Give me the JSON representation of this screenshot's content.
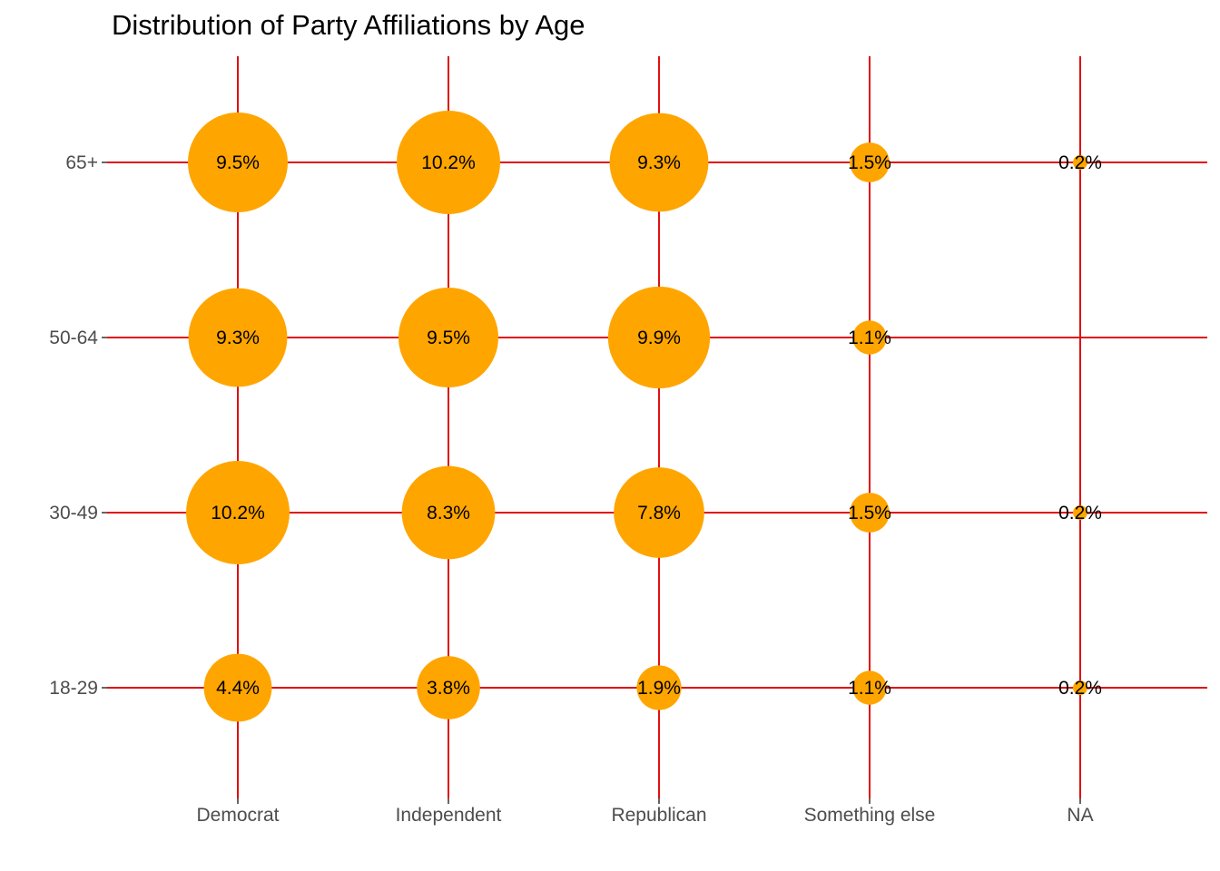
{
  "chart_data": {
    "type": "scatter",
    "title": "Distribution of Party Affiliations by Age",
    "xlabel": "",
    "ylabel": "",
    "x_categories": [
      "Democrat",
      "Independent",
      "Republican",
      "Something else",
      "NA"
    ],
    "y_categories": [
      "18-29",
      "30-49",
      "50-64",
      "65+"
    ],
    "grid": true,
    "legend": "none",
    "colors": {
      "bubble": "#FFA500",
      "grid": "#E01010",
      "tick_text": "#4D4D4D",
      "label_text": "#000000"
    },
    "points": [
      {
        "x": "Democrat",
        "y": "65+",
        "value": 9.5,
        "label": "9.5%"
      },
      {
        "x": "Independent",
        "y": "65+",
        "value": 10.2,
        "label": "10.2%"
      },
      {
        "x": "Republican",
        "y": "65+",
        "value": 9.3,
        "label": "9.3%"
      },
      {
        "x": "Something else",
        "y": "65+",
        "value": 1.5,
        "label": "1.5%"
      },
      {
        "x": "NA",
        "y": "65+",
        "value": 0.2,
        "label": "0.2%"
      },
      {
        "x": "Democrat",
        "y": "50-64",
        "value": 9.3,
        "label": "9.3%"
      },
      {
        "x": "Independent",
        "y": "50-64",
        "value": 9.5,
        "label": "9.5%"
      },
      {
        "x": "Republican",
        "y": "50-64",
        "value": 9.9,
        "label": "9.9%"
      },
      {
        "x": "Something else",
        "y": "50-64",
        "value": 1.1,
        "label": "1.1%"
      },
      {
        "x": "Democrat",
        "y": "30-49",
        "value": 10.2,
        "label": "10.2%"
      },
      {
        "x": "Independent",
        "y": "30-49",
        "value": 8.3,
        "label": "8.3%"
      },
      {
        "x": "Republican",
        "y": "30-49",
        "value": 7.8,
        "label": "7.8%"
      },
      {
        "x": "Something else",
        "y": "30-49",
        "value": 1.5,
        "label": "1.5%"
      },
      {
        "x": "NA",
        "y": "30-49",
        "value": 0.2,
        "label": "0.2%"
      },
      {
        "x": "Democrat",
        "y": "18-29",
        "value": 4.4,
        "label": "4.4%"
      },
      {
        "x": "Independent",
        "y": "18-29",
        "value": 3.8,
        "label": "3.8%"
      },
      {
        "x": "Republican",
        "y": "18-29",
        "value": 1.9,
        "label": "1.9%"
      },
      {
        "x": "Something else",
        "y": "18-29",
        "value": 1.1,
        "label": "1.1%"
      },
      {
        "x": "NA",
        "y": "18-29",
        "value": 0.2,
        "label": "0.2%"
      }
    ]
  }
}
